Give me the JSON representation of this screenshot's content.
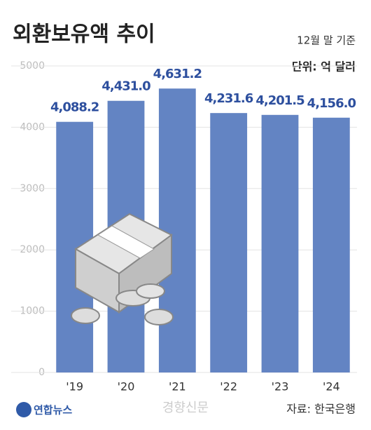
{
  "chart_data": {
    "type": "bar",
    "title": "외환보유액 추이",
    "subtitle": "12월 말 기준",
    "unit": "단위: 억 달러",
    "categories": [
      "'19",
      "'20",
      "'21",
      "'22",
      "'23",
      "'24"
    ],
    "values": [
      4088.2,
      4431.0,
      4631.2,
      4231.6,
      4201.5,
      4156.0
    ],
    "value_labels": [
      "4,088.2",
      "4,431.0",
      "4,631.2",
      "4,231.6",
      "4,201.5",
      "4,156.0"
    ],
    "color": "#6384c3",
    "ylim": [
      0,
      5000
    ],
    "yticks": [
      0,
      1000,
      2000,
      3000,
      4000,
      5000
    ],
    "grid": true,
    "source": "자료: 한국은행",
    "credit": "연합뉴스",
    "watermark": "경향신문"
  }
}
